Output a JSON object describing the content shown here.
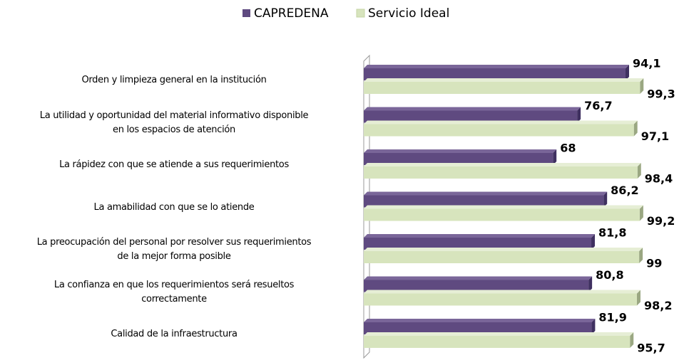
{
  "chart_data": {
    "type": "hbar",
    "categories": [
      "Orden y limpieza general en la institución",
      "La utilidad y oportunidad del material informativo disponible\nen los espacios de atención",
      "La rápidez con que se atiende a sus requerimientos",
      "La amabilidad con que se lo atiende",
      "La preocupación del personal por resolver sus requerimientos\nde la mejor forma posible",
      "La confianza en que los requerimientos será resueltos\ncorrectamente",
      "Calidad de la infraestructura"
    ],
    "series": [
      {
        "name": "CAPREDENA",
        "color": "#5f4a80",
        "values": [
          94.1,
          76.7,
          68,
          86.2,
          81.8,
          80.8,
          81.9
        ],
        "value_labels": [
          "94,1",
          "76,7",
          "68",
          "86,2",
          "81,8",
          "80,8",
          "81,9"
        ]
      },
      {
        "name": "Servicio Ideal",
        "color": "#d7e4bd",
        "values": [
          99.3,
          97.1,
          98.4,
          99.2,
          99,
          98.2,
          95.7
        ],
        "value_labels": [
          "99,3",
          "97,1",
          "98,4",
          "99,2",
          "99",
          "98,2",
          "95,7"
        ]
      }
    ],
    "xlim": [
      0,
      100
    ],
    "legend": "top"
  }
}
